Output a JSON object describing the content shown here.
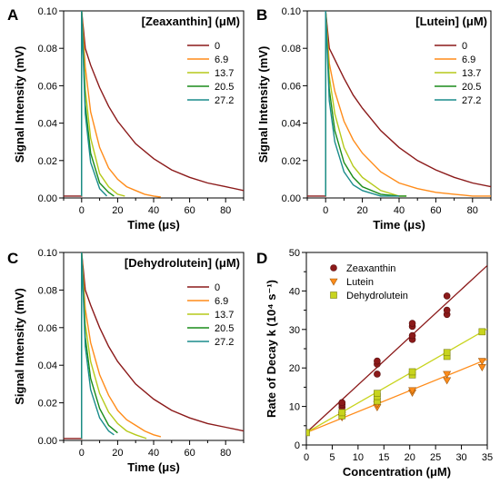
{
  "figure": {
    "series_colors": {
      "0": "#8b1a1a",
      "6.9": "#ff8c1a",
      "13.7": "#b5c91a",
      "20.5": "#1a8c1a",
      "27.2": "#1a8c8c"
    }
  },
  "chart_data": [
    {
      "panel": "A",
      "type": "line",
      "legend_title": "[Zeaxanthin] (μM)",
      "xlabel": "Time (μs)",
      "ylabel": "Signal Intensity (mV)",
      "xlim": [
        -10,
        90
      ],
      "ylim": [
        0,
        0.1
      ],
      "xticks": [
        0,
        20,
        40,
        60,
        80
      ],
      "yticks": [
        0.0,
        0.02,
        0.04,
        0.06,
        0.08,
        0.1
      ],
      "legend_position": "top-right",
      "series": [
        {
          "name": "0",
          "color": "#8b1a1a",
          "x": [
            -10,
            0,
            0,
            2,
            5,
            10,
            15,
            20,
            30,
            40,
            50,
            60,
            70,
            80,
            90
          ],
          "y": [
            0.001,
            0.001,
            0.1,
            0.08,
            0.071,
            0.059,
            0.049,
            0.041,
            0.029,
            0.021,
            0.015,
            0.011,
            0.008,
            0.006,
            0.004
          ]
        },
        {
          "name": "6.9",
          "color": "#ff8c1a",
          "x": [
            0,
            0,
            2,
            5,
            10,
            15,
            20,
            25,
            30,
            35,
            40,
            44
          ],
          "y": [
            0.001,
            0.1,
            0.07,
            0.046,
            0.027,
            0.016,
            0.01,
            0.006,
            0.004,
            0.002,
            0.001,
            0.0005
          ]
        },
        {
          "name": "13.7",
          "color": "#b5c91a",
          "x": [
            0,
            0,
            2,
            5,
            10,
            15,
            20,
            24
          ],
          "y": [
            0.001,
            0.1,
            0.058,
            0.032,
            0.013,
            0.006,
            0.002,
            0.001
          ]
        },
        {
          "name": "20.5",
          "color": "#1a8c1a",
          "x": [
            0,
            0,
            2,
            5,
            10,
            15,
            18
          ],
          "y": [
            0.001,
            0.1,
            0.05,
            0.024,
            0.008,
            0.003,
            0.001
          ]
        },
        {
          "name": "27.2",
          "color": "#1a8c8c",
          "x": [
            0,
            0,
            2,
            5,
            10,
            14
          ],
          "y": [
            0.001,
            0.1,
            0.045,
            0.019,
            0.005,
            0.001
          ]
        }
      ]
    },
    {
      "panel": "B",
      "type": "line",
      "legend_title": "[Lutein] (μM)",
      "xlabel": "Time (μs)",
      "ylabel": "Signal Intensity (mV)",
      "xlim": [
        -10,
        90
      ],
      "ylim": [
        0,
        0.1
      ],
      "xticks": [
        0,
        20,
        40,
        60,
        80
      ],
      "yticks": [
        0.0,
        0.02,
        0.04,
        0.06,
        0.08,
        0.1
      ],
      "legend_position": "top-right",
      "series": [
        {
          "name": "0",
          "color": "#8b1a1a",
          "x": [
            -10,
            0,
            0,
            2,
            5,
            10,
            15,
            20,
            30,
            40,
            50,
            60,
            70,
            80,
            90
          ],
          "y": [
            0.001,
            0.001,
            0.1,
            0.08,
            0.074,
            0.064,
            0.055,
            0.048,
            0.036,
            0.027,
            0.02,
            0.015,
            0.011,
            0.008,
            0.006
          ]
        },
        {
          "name": "6.9",
          "color": "#ff8c1a",
          "x": [
            0,
            0,
            2,
            5,
            10,
            15,
            20,
            30,
            40,
            50,
            60,
            70,
            80,
            90
          ],
          "y": [
            0.001,
            0.1,
            0.072,
            0.057,
            0.041,
            0.031,
            0.024,
            0.014,
            0.008,
            0.005,
            0.003,
            0.002,
            0.001,
            0.001
          ]
        },
        {
          "name": "13.7",
          "color": "#b5c91a",
          "x": [
            0,
            0,
            2,
            5,
            10,
            15,
            20,
            30,
            40,
            44
          ],
          "y": [
            0.001,
            0.1,
            0.065,
            0.045,
            0.027,
            0.017,
            0.011,
            0.004,
            0.001,
            0.001
          ]
        },
        {
          "name": "20.5",
          "color": "#1a8c1a",
          "x": [
            0,
            0,
            2,
            5,
            10,
            15,
            20,
            30,
            40,
            44
          ],
          "y": [
            0.001,
            0.1,
            0.058,
            0.036,
            0.019,
            0.011,
            0.006,
            0.002,
            0.001,
            0.001
          ]
        },
        {
          "name": "27.2",
          "color": "#1a8c8c",
          "x": [
            0,
            0,
            2,
            5,
            10,
            15,
            20,
            30,
            40
          ],
          "y": [
            0.001,
            0.1,
            0.052,
            0.03,
            0.014,
            0.007,
            0.004,
            0.001,
            0.001
          ]
        }
      ]
    },
    {
      "panel": "C",
      "type": "line",
      "legend_title": "[Dehydrolutein] (μM)",
      "xlabel": "Time (μs)",
      "ylabel": "Signal Intensity (mV)",
      "xlim": [
        -10,
        90
      ],
      "ylim": [
        0,
        0.1
      ],
      "xticks": [
        0,
        20,
        40,
        60,
        80
      ],
      "yticks": [
        0.0,
        0.02,
        0.04,
        0.06,
        0.08,
        0.1
      ],
      "legend_position": "top-right",
      "series": [
        {
          "name": "0",
          "color": "#8b1a1a",
          "x": [
            -10,
            0,
            0,
            2,
            5,
            10,
            15,
            20,
            30,
            40,
            50,
            60,
            70,
            80,
            90
          ],
          "y": [
            0.001,
            0.001,
            0.1,
            0.08,
            0.072,
            0.06,
            0.05,
            0.042,
            0.03,
            0.022,
            0.016,
            0.012,
            0.009,
            0.007,
            0.005
          ]
        },
        {
          "name": "6.9",
          "color": "#ff8c1a",
          "x": [
            0,
            0,
            2,
            5,
            10,
            15,
            20,
            25,
            30,
            35,
            40,
            44
          ],
          "y": [
            0.001,
            0.1,
            0.07,
            0.052,
            0.035,
            0.024,
            0.016,
            0.011,
            0.008,
            0.005,
            0.003,
            0.002
          ]
        },
        {
          "name": "13.7",
          "color": "#b5c91a",
          "x": [
            0,
            0,
            2,
            5,
            10,
            15,
            20,
            25,
            30,
            36
          ],
          "y": [
            0.001,
            0.1,
            0.062,
            0.042,
            0.025,
            0.015,
            0.009,
            0.005,
            0.003,
            0.001
          ]
        },
        {
          "name": "20.5",
          "color": "#1a8c1a",
          "x": [
            0,
            0,
            2,
            5,
            10,
            15,
            20
          ],
          "y": [
            0.001,
            0.1,
            0.055,
            0.033,
            0.017,
            0.008,
            0.004
          ]
        },
        {
          "name": "27.2",
          "color": "#1a8c8c",
          "x": [
            0,
            0,
            2,
            5,
            10,
            15,
            18
          ],
          "y": [
            0.001,
            0.1,
            0.05,
            0.027,
            0.012,
            0.005,
            0.003
          ]
        }
      ]
    },
    {
      "panel": "D",
      "type": "scatter",
      "xlabel": "Concentration (μM)",
      "ylabel": "Rate of Decay k (10⁴ s⁻¹)",
      "xlim": [
        0,
        35
      ],
      "ylim": [
        0,
        50
      ],
      "xticks": [
        0,
        5,
        10,
        15,
        20,
        25,
        30,
        35
      ],
      "yticks": [
        0,
        10,
        20,
        30,
        40,
        50
      ],
      "legend_position": "top-left",
      "series": [
        {
          "name": "Zeaxanthin",
          "marker": "circle",
          "color": "#8b1a1a",
          "x": [
            0,
            6.9,
            6.9,
            6.9,
            13.7,
            13.7,
            13.7,
            20.5,
            20.5,
            20.5,
            20.5,
            27.2,
            27.2,
            27.2
          ],
          "y": [
            3.2,
            9.8,
            10.5,
            11.0,
            18.4,
            21.0,
            21.8,
            27.4,
            28.4,
            30.8,
            31.6,
            33.9,
            35.0,
            38.7
          ],
          "fit": {
            "slope": 1.24,
            "intercept": 3.2
          }
        },
        {
          "name": "Lutein",
          "marker": "triangle-down",
          "color": "#ff8c1a",
          "x": [
            0,
            6.9,
            6.9,
            13.7,
            13.7,
            20.5,
            20.5,
            27.2,
            27.2,
            34.0,
            34.0
          ],
          "y": [
            3.2,
            7.2,
            7.8,
            9.8,
            10.6,
            13.6,
            14.2,
            16.8,
            18.4,
            20.2,
            21.8
          ],
          "fit": {
            "slope": 0.545,
            "intercept": 3.2
          }
        },
        {
          "name": "Dehydrolutein",
          "marker": "square",
          "color": "#c8d41e",
          "x": [
            0,
            6.9,
            6.9,
            13.7,
            13.7,
            13.7,
            20.5,
            20.5,
            27.2,
            27.2,
            34.0
          ],
          "y": [
            3.2,
            7.6,
            8.4,
            11.4,
            12.6,
            13.4,
            18.2,
            19.0,
            23.0,
            24.0,
            29.4
          ],
          "fit": {
            "slope": 0.77,
            "intercept": 3.2
          }
        }
      ]
    }
  ]
}
